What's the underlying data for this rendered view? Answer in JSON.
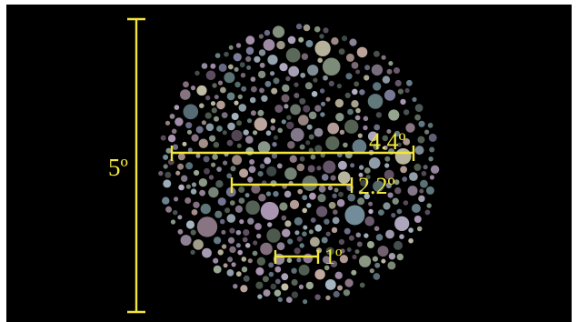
{
  "measurements": {
    "vertical_label": "5º",
    "bar1_label": "4.4º",
    "bar2_label": "2.2º",
    "bar3_label": "1º"
  },
  "colors": {
    "background": "#000000",
    "measure_line": "#f2e63c",
    "dot_palette": [
      "#8a9a8c",
      "#b09ab8",
      "#6f8a8e",
      "#c0a8a0",
      "#7c7e9c",
      "#9fb09a",
      "#4e5a58",
      "#a7b8c4",
      "#6a5a6e",
      "#b8b0c8",
      "#5d6b5c",
      "#9c8fa3",
      "#c4c0a8",
      "#738c9a",
      "#8f7a8a"
    ]
  }
}
